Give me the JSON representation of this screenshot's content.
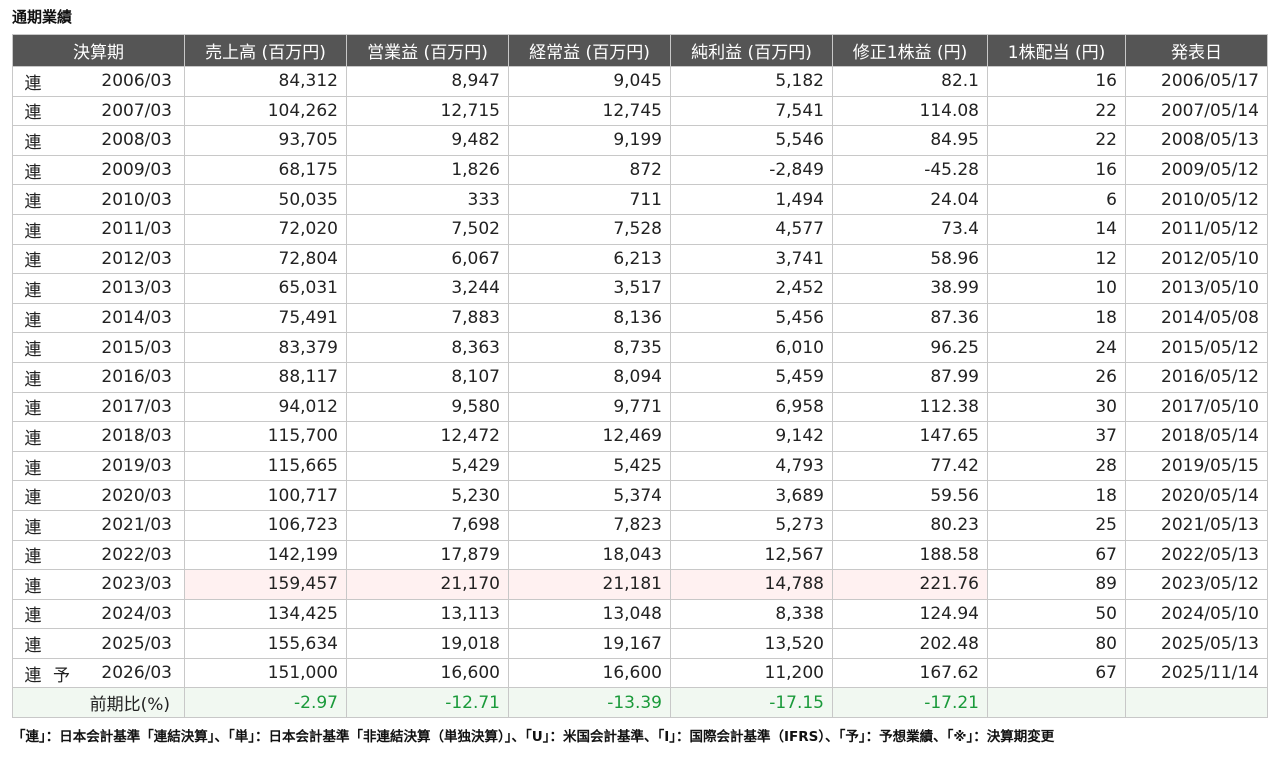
{
  "title": "通期業績",
  "headers": [
    "決算期",
    "売上高 (百万円)",
    "営業益 (百万円)",
    "経常益 (百万円)",
    "純利益 (百万円)",
    "修正1株益 (円)",
    "1株配当 (円)",
    "発表日"
  ],
  "rows": [
    {
      "type": "連",
      "forecast": "",
      "period": "2006/03",
      "sales": "84,312",
      "op": "8,947",
      "ord": "9,045",
      "net": "5,182",
      "eps": "82.1",
      "div": "16",
      "date": "2006/05/17"
    },
    {
      "type": "連",
      "forecast": "",
      "period": "2007/03",
      "sales": "104,262",
      "op": "12,715",
      "ord": "12,745",
      "net": "7,541",
      "eps": "114.08",
      "div": "22",
      "date": "2007/05/14"
    },
    {
      "type": "連",
      "forecast": "",
      "period": "2008/03",
      "sales": "93,705",
      "op": "9,482",
      "ord": "9,199",
      "net": "5,546",
      "eps": "84.95",
      "div": "22",
      "date": "2008/05/13"
    },
    {
      "type": "連",
      "forecast": "",
      "period": "2009/03",
      "sales": "68,175",
      "op": "1,826",
      "ord": "872",
      "net": "-2,849",
      "eps": "-45.28",
      "div": "16",
      "date": "2009/05/12"
    },
    {
      "type": "連",
      "forecast": "",
      "period": "2010/03",
      "sales": "50,035",
      "op": "333",
      "ord": "711",
      "net": "1,494",
      "eps": "24.04",
      "div": "6",
      "date": "2010/05/12"
    },
    {
      "type": "連",
      "forecast": "",
      "period": "2011/03",
      "sales": "72,020",
      "op": "7,502",
      "ord": "7,528",
      "net": "4,577",
      "eps": "73.4",
      "div": "14",
      "date": "2011/05/12"
    },
    {
      "type": "連",
      "forecast": "",
      "period": "2012/03",
      "sales": "72,804",
      "op": "6,067",
      "ord": "6,213",
      "net": "3,741",
      "eps": "58.96",
      "div": "12",
      "date": "2012/05/10"
    },
    {
      "type": "連",
      "forecast": "",
      "period": "2013/03",
      "sales": "65,031",
      "op": "3,244",
      "ord": "3,517",
      "net": "2,452",
      "eps": "38.99",
      "div": "10",
      "date": "2013/05/10"
    },
    {
      "type": "連",
      "forecast": "",
      "period": "2014/03",
      "sales": "75,491",
      "op": "7,883",
      "ord": "8,136",
      "net": "5,456",
      "eps": "87.36",
      "div": "18",
      "date": "2014/05/08"
    },
    {
      "type": "連",
      "forecast": "",
      "period": "2015/03",
      "sales": "83,379",
      "op": "8,363",
      "ord": "8,735",
      "net": "6,010",
      "eps": "96.25",
      "div": "24",
      "date": "2015/05/12"
    },
    {
      "type": "連",
      "forecast": "",
      "period": "2016/03",
      "sales": "88,117",
      "op": "8,107",
      "ord": "8,094",
      "net": "5,459",
      "eps": "87.99",
      "div": "26",
      "date": "2016/05/12"
    },
    {
      "type": "連",
      "forecast": "",
      "period": "2017/03",
      "sales": "94,012",
      "op": "9,580",
      "ord": "9,771",
      "net": "6,958",
      "eps": "112.38",
      "div": "30",
      "date": "2017/05/10"
    },
    {
      "type": "連",
      "forecast": "",
      "period": "2018/03",
      "sales": "115,700",
      "op": "12,472",
      "ord": "12,469",
      "net": "9,142",
      "eps": "147.65",
      "div": "37",
      "date": "2018/05/14"
    },
    {
      "type": "連",
      "forecast": "",
      "period": "2019/03",
      "sales": "115,665",
      "op": "5,429",
      "ord": "5,425",
      "net": "4,793",
      "eps": "77.42",
      "div": "28",
      "date": "2019/05/15"
    },
    {
      "type": "連",
      "forecast": "",
      "period": "2020/03",
      "sales": "100,717",
      "op": "5,230",
      "ord": "5,374",
      "net": "3,689",
      "eps": "59.56",
      "div": "18",
      "date": "2020/05/14"
    },
    {
      "type": "連",
      "forecast": "",
      "period": "2021/03",
      "sales": "106,723",
      "op": "7,698",
      "ord": "7,823",
      "net": "5,273",
      "eps": "80.23",
      "div": "25",
      "date": "2021/05/13"
    },
    {
      "type": "連",
      "forecast": "",
      "period": "2022/03",
      "sales": "142,199",
      "op": "17,879",
      "ord": "18,043",
      "net": "12,567",
      "eps": "188.58",
      "div": "67",
      "date": "2022/05/13"
    },
    {
      "type": "連",
      "forecast": "",
      "period": "2023/03",
      "sales": "159,457",
      "op": "21,170",
      "ord": "21,181",
      "net": "14,788",
      "eps": "221.76",
      "div": "89",
      "date": "2023/05/12",
      "highlight": true
    },
    {
      "type": "連",
      "forecast": "",
      "period": "2024/03",
      "sales": "134,425",
      "op": "13,113",
      "ord": "13,048",
      "net": "8,338",
      "eps": "124.94",
      "div": "50",
      "date": "2024/05/10"
    },
    {
      "type": "連",
      "forecast": "",
      "period": "2025/03",
      "sales": "155,634",
      "op": "19,018",
      "ord": "19,167",
      "net": "13,520",
      "eps": "202.48",
      "div": "80",
      "date": "2025/05/13"
    },
    {
      "type": "連",
      "forecast": "予",
      "period": "2026/03",
      "sales": "151,000",
      "op": "16,600",
      "ord": "16,600",
      "net": "11,200",
      "eps": "167.62",
      "div": "67",
      "date": "2025/11/14"
    }
  ],
  "ratio": {
    "label": "前期比(%)",
    "sales": "-2.97",
    "op": "-12.71",
    "ord": "-13.39",
    "net": "-17.15",
    "eps": "-17.21",
    "div": "",
    "date": ""
  },
  "note": "「連」：日本会計基準「連結決算」、「単」：日本会計基準「非連結決算（単独決算）」、「U」：米国会計基準、「I」：国際会計基準（IFRS）、「予」：予想業績、「※」：決算期変更",
  "colors": {
    "header_bg": "#555555",
    "highlight_bg": "#fff1f1",
    "ratio_bg": "#f1f8f1",
    "ratio_text": "#1a9a3a"
  }
}
